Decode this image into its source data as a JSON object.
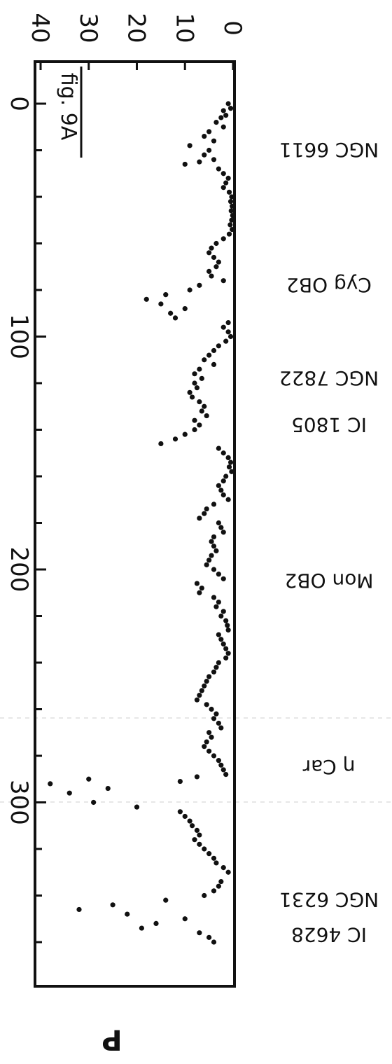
{
  "chart_data": {
    "type": "scatter",
    "figure_label": "fig. 9A",
    "xlabel": "",
    "ylabel": "P",
    "xlim": [
      0,
      360
    ],
    "ylim": [
      0,
      40
    ],
    "x_ticks": [
      0,
      100,
      200,
      300
    ],
    "y_ticks": [
      0,
      10,
      20,
      30,
      40
    ],
    "grid": false,
    "legend": "none",
    "region_labels": [
      {
        "text": "NGC 6611",
        "x": 20
      },
      {
        "text": "Cyg OB2",
        "x": 78
      },
      {
        "text": "NGC 7822",
        "x": 118
      },
      {
        "text": "IC 1805",
        "x": 138
      },
      {
        "text": "Mon OB2",
        "x": 205
      },
      {
        "text": "η Car",
        "x": 285
      },
      {
        "text": "NGC 6231",
        "x": 342
      },
      {
        "text": "IC 4628",
        "x": 357
      }
    ],
    "series": [
      {
        "values": [
          [
            0,
            1
          ],
          [
            2,
            0.5
          ],
          [
            3,
            2
          ],
          [
            5,
            1.5
          ],
          [
            6,
            2.5
          ],
          [
            8,
            3.5
          ],
          [
            10,
            2
          ],
          [
            12,
            5
          ],
          [
            14,
            6
          ],
          [
            16,
            4
          ],
          [
            18,
            9
          ],
          [
            20,
            5
          ],
          [
            22,
            6
          ],
          [
            24,
            4
          ],
          [
            25,
            7
          ],
          [
            26,
            10
          ],
          [
            28,
            3
          ],
          [
            30,
            2
          ],
          [
            32,
            1
          ],
          [
            34,
            1.5
          ],
          [
            36,
            2
          ],
          [
            38,
            0.8
          ],
          [
            40,
            0.3
          ],
          [
            42,
            0.5
          ],
          [
            44,
            0.2
          ],
          [
            46,
            0.4
          ],
          [
            48,
            0.1
          ],
          [
            50,
            0.3
          ],
          [
            52,
            0.6
          ],
          [
            54,
            0.2
          ],
          [
            56,
            0.8
          ],
          [
            58,
            2
          ],
          [
            60,
            3.5
          ],
          [
            62,
            4.5
          ],
          [
            64,
            5
          ],
          [
            66,
            4
          ],
          [
            68,
            3
          ],
          [
            70,
            3.5
          ],
          [
            72,
            5
          ],
          [
            74,
            4.5
          ],
          [
            76,
            2
          ],
          [
            78,
            7
          ],
          [
            80,
            9
          ],
          [
            82,
            14
          ],
          [
            84,
            18
          ],
          [
            86,
            15
          ],
          [
            88,
            10
          ],
          [
            90,
            13
          ],
          [
            92,
            12
          ],
          [
            94,
            1
          ],
          [
            96,
            2
          ],
          [
            98,
            1
          ],
          [
            100,
            0.5
          ],
          [
            102,
            1.5
          ],
          [
            104,
            3
          ],
          [
            106,
            4
          ],
          [
            108,
            5
          ],
          [
            110,
            6
          ],
          [
            112,
            4
          ],
          [
            114,
            7
          ],
          [
            116,
            8
          ],
          [
            118,
            6.5
          ],
          [
            120,
            8
          ],
          [
            122,
            7.5
          ],
          [
            124,
            9
          ],
          [
            126,
            8.5
          ],
          [
            128,
            7
          ],
          [
            130,
            6
          ],
          [
            132,
            6.5
          ],
          [
            134,
            5.5
          ],
          [
            136,
            8
          ],
          [
            138,
            7
          ],
          [
            140,
            8
          ],
          [
            142,
            10
          ],
          [
            144,
            12
          ],
          [
            146,
            15
          ],
          [
            148,
            3
          ],
          [
            150,
            2
          ],
          [
            152,
            1
          ],
          [
            154,
            0.5
          ],
          [
            156,
            0.8
          ],
          [
            158,
            0.3
          ],
          [
            160,
            1.5
          ],
          [
            162,
            2
          ],
          [
            164,
            3
          ],
          [
            166,
            2.5
          ],
          [
            168,
            2
          ],
          [
            170,
            1
          ],
          [
            172,
            4
          ],
          [
            174,
            5.5
          ],
          [
            176,
            6
          ],
          [
            178,
            7
          ],
          [
            180,
            3
          ],
          [
            182,
            2.5
          ],
          [
            184,
            2
          ],
          [
            186,
            4
          ],
          [
            188,
            4.5
          ],
          [
            190,
            4
          ],
          [
            192,
            3.5
          ],
          [
            194,
            4.5
          ],
          [
            196,
            5
          ],
          [
            198,
            5.5
          ],
          [
            200,
            4
          ],
          [
            202,
            3
          ],
          [
            204,
            2
          ],
          [
            206,
            7.5
          ],
          [
            208,
            6.5
          ],
          [
            210,
            7
          ],
          [
            212,
            4
          ],
          [
            214,
            3
          ],
          [
            216,
            3.5
          ],
          [
            218,
            2
          ],
          [
            220,
            2.5
          ],
          [
            222,
            1.5
          ],
          [
            224,
            1.2
          ],
          [
            226,
            1
          ],
          [
            228,
            3
          ],
          [
            230,
            2.5
          ],
          [
            232,
            2
          ],
          [
            234,
            1.5
          ],
          [
            236,
            1
          ],
          [
            238,
            1.5
          ],
          [
            240,
            3
          ],
          [
            242,
            3.5
          ],
          [
            244,
            4
          ],
          [
            246,
            5
          ],
          [
            248,
            5.5
          ],
          [
            250,
            6
          ],
          [
            252,
            6.5
          ],
          [
            254,
            7
          ],
          [
            256,
            7.5
          ],
          [
            258,
            5.5
          ],
          [
            260,
            4.5
          ],
          [
            262,
            3.5
          ],
          [
            264,
            4
          ],
          [
            266,
            3
          ],
          [
            268,
            2.5
          ],
          [
            270,
            5
          ],
          [
            272,
            4.5
          ],
          [
            274,
            5.5
          ],
          [
            276,
            6
          ],
          [
            278,
            5
          ],
          [
            280,
            4
          ],
          [
            282,
            3
          ],
          [
            284,
            2.5
          ],
          [
            286,
            2
          ],
          [
            288,
            1.5
          ],
          [
            289,
            7.5
          ],
          [
            290,
            30
          ],
          [
            291,
            11
          ],
          [
            292,
            38
          ],
          [
            294,
            26
          ],
          [
            296,
            34
          ],
          [
            300,
            29
          ],
          [
            302,
            20
          ],
          [
            304,
            11
          ],
          [
            306,
            10
          ],
          [
            308,
            9
          ],
          [
            310,
            8.5
          ],
          [
            312,
            7.5
          ],
          [
            314,
            7
          ],
          [
            316,
            8
          ],
          [
            318,
            7
          ],
          [
            320,
            6
          ],
          [
            322,
            5
          ],
          [
            324,
            4
          ],
          [
            326,
            3.5
          ],
          [
            328,
            2
          ],
          [
            330,
            1
          ],
          [
            334,
            2.5
          ],
          [
            336,
            3
          ],
          [
            338,
            4
          ],
          [
            340,
            6
          ],
          [
            342,
            14
          ],
          [
            344,
            25
          ],
          [
            346,
            32
          ],
          [
            348,
            22
          ],
          [
            350,
            10
          ],
          [
            352,
            16
          ],
          [
            354,
            19
          ],
          [
            356,
            7
          ],
          [
            358,
            5
          ],
          [
            360,
            4
          ]
        ]
      }
    ]
  }
}
